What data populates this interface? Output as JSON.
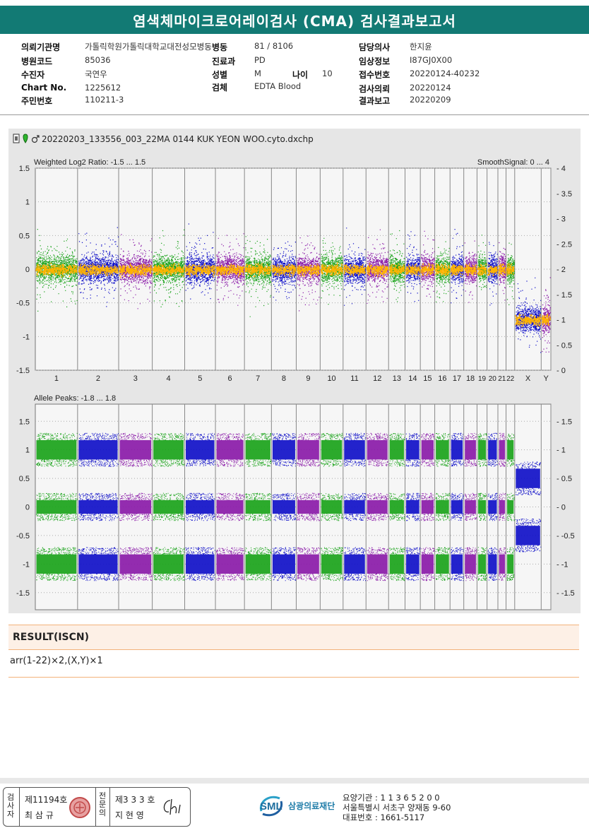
{
  "report": {
    "title": "염색체마이크로어레이검사 (CMA) 검사결과보고서"
  },
  "patient": {
    "fields": [
      {
        "label": "의뢰기관명",
        "value": "가톨릭학원가톨릭대학교대전성모병동"
      },
      {
        "label": "병원코드",
        "value": "85036"
      },
      {
        "label": "수진자",
        "value": "국연우"
      },
      {
        "label": "Chart No.",
        "value": "1225612"
      },
      {
        "label": "주민번호",
        "value": "110211-3"
      },
      {
        "label": "병동",
        "value": "81 / 8106"
      },
      {
        "label": "진료과",
        "value": "PD"
      },
      {
        "label": "성별",
        "value": "M"
      },
      {
        "label": "나이",
        "value": "10"
      },
      {
        "label": "검체",
        "value": "EDTA Blood"
      },
      {
        "label": "담당의사",
        "value": "한지윤"
      },
      {
        "label": "임상정보",
        "value": "I87GJ0X00"
      },
      {
        "label": "접수번호",
        "value": "20220124-40232"
      },
      {
        "label": "검사의뢰",
        "value": "20220124"
      },
      {
        "label": "결과보고",
        "value": "20220209"
      }
    ]
  },
  "plot": {
    "filename": "20220203_133556_003_22MA 0144 KUK YEON WOO.cyto.dxchp",
    "top_left_label": "Weighted Log2 Ratio: -1.5 ... 1.5",
    "top_right_label": "SmoothSignal: 0 ... 4",
    "bottom_left_label": "Allele Peaks: -1.8 ... 1.8",
    "colors": {
      "green": "#1aa31a",
      "blue": "#1010c8",
      "purple": "#8a1aa8",
      "orange": "#ffb300",
      "panel": "#e6e6e6"
    }
  },
  "chart_data": [
    {
      "type": "scatter",
      "title": "",
      "left_label": "Weighted Log2 Ratio: -1.5 ... 1.5",
      "right_label": "SmoothSignal: 0 ... 4",
      "ylim": [
        -1.5,
        1.5
      ],
      "ylim_right": [
        0,
        4
      ],
      "y_ticks_left": [
        "1.5",
        "1",
        "0.5",
        "0",
        "-0.5",
        "-1",
        "-1.5"
      ],
      "y_ticks_right": [
        "4",
        "3.5",
        "3",
        "2.5",
        "2",
        "1.5",
        "1",
        "0.5",
        "0"
      ],
      "categories": [
        "1",
        "2",
        "3",
        "4",
        "5",
        "6",
        "7",
        "8",
        "9",
        "10",
        "11",
        "12",
        "13",
        "14",
        "15",
        "16",
        "17",
        "18",
        "19",
        "20",
        "21",
        "22",
        "X",
        "Y"
      ],
      "series": [
        {
          "name": "",
          "values": [
            0,
            0,
            0,
            0,
            0,
            0,
            0,
            0,
            0,
            0,
            0,
            0,
            0,
            0,
            0,
            0,
            0,
            0,
            0,
            0,
            0,
            0,
            -0.75,
            -0.75
          ]
        }
      ],
      "smooth_signal": [
        2,
        2,
        2,
        2,
        2,
        2,
        2,
        2,
        2,
        2,
        2,
        2,
        2,
        2,
        2,
        2,
        2,
        2,
        2,
        2,
        2,
        2,
        1,
        1
      ]
    },
    {
      "type": "scatter",
      "title": "",
      "left_label": "Allele Peaks: -1.8 ... 1.8",
      "ylim": [
        -1.8,
        1.8
      ],
      "y_ticks_left": [
        "1.5",
        "1",
        "0.5",
        "0",
        "-0.5",
        "-1",
        "-1.5"
      ],
      "y_ticks_right": [
        "1.5",
        "1",
        "0.5",
        "0",
        "-0.5",
        "-1",
        "-1.5"
      ],
      "categories": [
        "1",
        "2",
        "3",
        "4",
        "5",
        "6",
        "7",
        "8",
        "9",
        "10",
        "11",
        "12",
        "13",
        "14",
        "15",
        "16",
        "17",
        "18",
        "19",
        "20",
        "21",
        "22",
        "X",
        "Y"
      ],
      "peaks_autosome": [
        1,
        0,
        -1
      ],
      "peaks_x": [
        0.5,
        -0.5
      ]
    }
  ],
  "result": {
    "heading": "RESULT(ISCN)",
    "value": "arr(1-22)×2,(X,Y)×1"
  },
  "signatures": {
    "tester_label": "검사자",
    "tester_no": "제11194호",
    "tester_name": "최 삼 규",
    "expert_label": "전문의",
    "expert_no": "제3 3 3 호",
    "expert_name": "지 현 영"
  },
  "organization": {
    "logo": "SML",
    "name": "삼광의료재단",
    "code": "요양기관 : 1 1 3 6 5 2 0 0",
    "address": "서울특별시 서초구 양재동 9-60",
    "phone": "대표번호 : 1661-5117"
  }
}
